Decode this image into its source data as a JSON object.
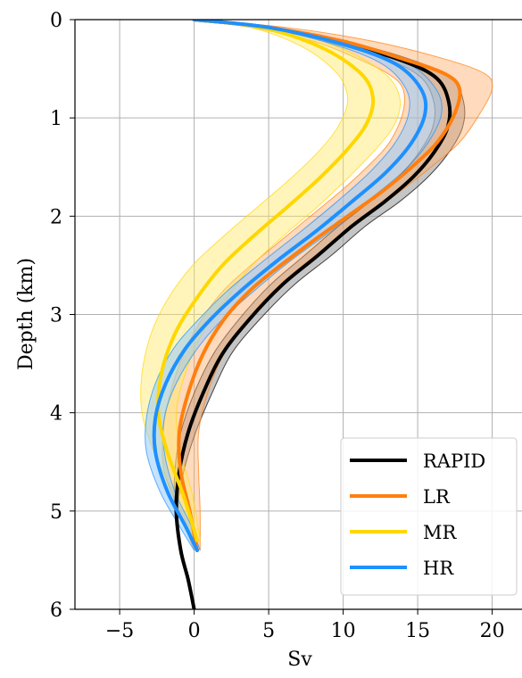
{
  "chart_data": {
    "type": "line",
    "title": "",
    "xlabel": "Sv",
    "ylabel": "Depth (km)",
    "xlim": [
      -8,
      22
    ],
    "ylim": [
      6,
      0
    ],
    "y_inverted": true,
    "x_ticks": [
      -5,
      0,
      5,
      10,
      15,
      20
    ],
    "x_tick_labels": [
      "−5",
      "0",
      "5",
      "10",
      "15",
      "20"
    ],
    "y_ticks": [
      0,
      1,
      2,
      3,
      4,
      5,
      6
    ],
    "y_tick_labels": [
      "0",
      "1",
      "2",
      "3",
      "4",
      "5",
      "6"
    ],
    "grid": true,
    "legend_position": "bottom-right",
    "series": [
      {
        "name": "RAPID",
        "color": "#000000",
        "band_color": "#9e9e9e",
        "band_opacity": 0.6,
        "x": [
          0,
          5,
          10,
          14,
          16.3,
          17.1,
          17.0,
          16.1,
          14.7,
          12.8,
          10.6,
          8.3,
          5.9,
          3.7,
          1.9,
          0.6,
          -0.4,
          -1.0,
          -1.2,
          -0.9,
          -0.4,
          0.0
        ],
        "y": [
          0,
          0.08,
          0.24,
          0.42,
          0.6,
          0.85,
          1.1,
          1.35,
          1.6,
          1.85,
          2.1,
          2.4,
          2.7,
          3.05,
          3.4,
          3.8,
          4.2,
          4.6,
          5.0,
          5.4,
          5.7,
          6.0
        ],
        "lower": [
          0,
          4.7,
          9.3,
          13.2,
          15.3,
          16.1,
          16.0,
          15.1,
          13.7,
          11.8,
          9.7,
          7.4,
          5.1,
          3.0,
          1.3,
          0.0,
          -0.9,
          -1.3,
          -1.3,
          -0.9,
          -0.4,
          0.0
        ],
        "upper": [
          0,
          5.3,
          10.7,
          14.8,
          17.3,
          18.1,
          18.0,
          17.1,
          15.7,
          13.8,
          11.5,
          9.2,
          6.7,
          4.4,
          2.5,
          1.2,
          0.1,
          -0.7,
          -1.1,
          -0.9,
          -0.4,
          0.0
        ]
      },
      {
        "name": "LR",
        "color": "#ff7f0e",
        "band_color": "#ffae6b",
        "band_opacity": 0.45,
        "x": [
          0,
          5,
          10,
          14,
          16.8,
          17.8,
          17.5,
          16.3,
          14.6,
          12.6,
          10.3,
          8.0,
          5.8,
          3.8,
          2.0,
          0.6,
          -0.4,
          -1.0,
          -0.9,
          -0.3,
          0.2
        ],
        "y": [
          0,
          0.08,
          0.22,
          0.4,
          0.55,
          0.7,
          0.95,
          1.25,
          1.5,
          1.75,
          2.0,
          2.25,
          2.5,
          2.75,
          3.05,
          3.4,
          3.8,
          4.2,
          4.6,
          5.0,
          5.4
        ],
        "lower": [
          0,
          3.8,
          8.0,
          11.0,
          13.0,
          14.0,
          14.0,
          13.1,
          11.6,
          9.8,
          7.8,
          5.8,
          3.8,
          2.0,
          0.5,
          -0.7,
          -1.6,
          -2.1,
          -2.0,
          -1.0,
          0.0
        ],
        "upper": [
          0,
          6.2,
          12.0,
          16.8,
          19.5,
          20.0,
          19.2,
          17.8,
          15.9,
          13.8,
          11.6,
          9.4,
          7.3,
          5.4,
          3.6,
          2.0,
          0.9,
          0.3,
          0.3,
          0.4,
          0.4
        ]
      },
      {
        "name": "MR",
        "color": "#ffd700",
        "band_color": "#ffe866",
        "band_opacity": 0.45,
        "x": [
          0,
          4.5,
          8.5,
          11.2,
          12.0,
          11.6,
          10.4,
          8.5,
          6.3,
          4.0,
          1.9,
          0.1,
          -1.3,
          -2.2,
          -2.4,
          -1.8,
          -0.7,
          0.2
        ],
        "y": [
          0,
          0.08,
          0.28,
          0.55,
          0.8,
          1.05,
          1.3,
          1.6,
          1.9,
          2.2,
          2.5,
          2.85,
          3.2,
          3.6,
          4.0,
          4.4,
          4.85,
          5.3
        ],
        "lower": [
          0,
          3.8,
          7.3,
          9.6,
          10.3,
          9.8,
          8.6,
          6.6,
          4.3,
          2.0,
          -0.1,
          -1.8,
          -2.9,
          -3.5,
          -3.5,
          -2.7,
          -1.3,
          0.0
        ],
        "upper": [
          0,
          5.2,
          9.7,
          12.8,
          13.8,
          13.5,
          12.3,
          10.4,
          8.3,
          6.0,
          3.9,
          2.1,
          0.5,
          -0.6,
          -1.2,
          -0.9,
          -0.1,
          0.4
        ]
      },
      {
        "name": "HR",
        "color": "#1e90ff",
        "band_color": "#8cc7ff",
        "band_opacity": 0.5,
        "x": [
          0,
          5,
          10,
          13.5,
          15.2,
          15.5,
          14.6,
          12.9,
          10.6,
          8.2,
          5.6,
          3.2,
          1.1,
          -0.6,
          -1.9,
          -2.6,
          -2.6,
          -1.8,
          -0.6,
          0.2
        ],
        "y": [
          0,
          0.08,
          0.25,
          0.45,
          0.7,
          0.95,
          1.25,
          1.55,
          1.85,
          2.15,
          2.45,
          2.75,
          3.05,
          3.35,
          3.7,
          4.05,
          4.4,
          4.8,
          5.15,
          5.4
        ],
        "lower": [
          0,
          4.6,
          9.3,
          12.6,
          14.2,
          14.4,
          13.5,
          11.8,
          9.6,
          7.2,
          4.7,
          2.3,
          0.3,
          -1.4,
          -2.6,
          -3.2,
          -3.2,
          -2.3,
          -1.0,
          0.0
        ],
        "upper": [
          0,
          5.4,
          10.7,
          14.4,
          16.2,
          16.6,
          15.7,
          14.0,
          11.6,
          9.2,
          6.5,
          4.1,
          1.9,
          0.2,
          -1.2,
          -2.0,
          -2.0,
          -1.3,
          -0.2,
          0.4
        ]
      }
    ]
  }
}
